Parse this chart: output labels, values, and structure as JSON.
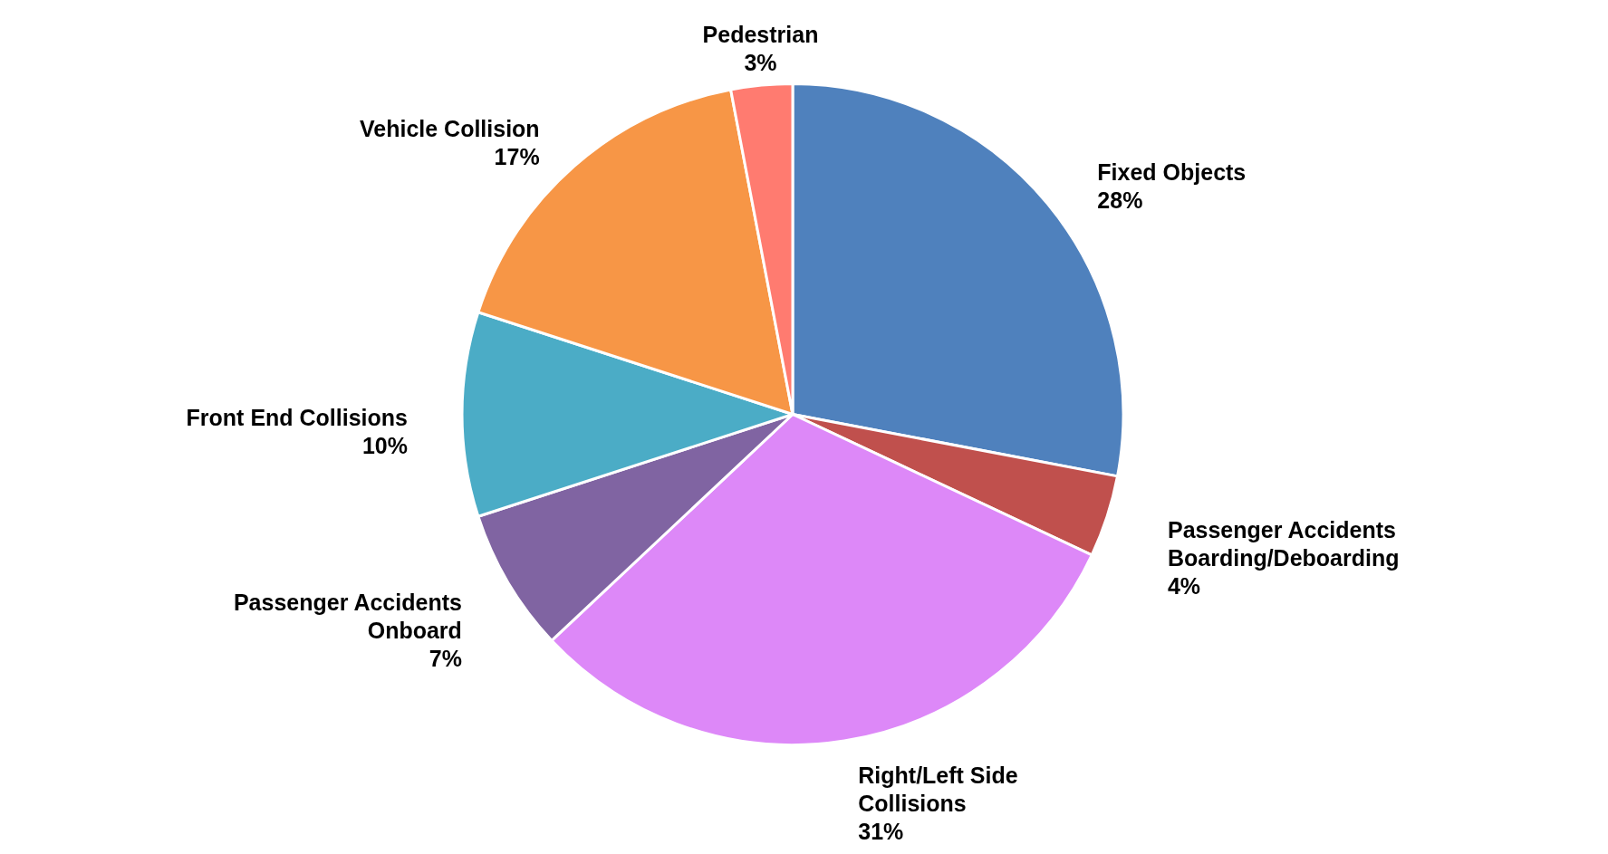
{
  "chart_data": {
    "type": "pie",
    "categories": [
      "Fixed Objects",
      "Passenger Accidents Boarding/Deboarding",
      "Right/Left Side Collisions",
      "Passenger Accidents Onboard",
      "Front End Collisions",
      "Vehicle Collision",
      "Pedestrian"
    ],
    "values": [
      28,
      4,
      31,
      7,
      10,
      17,
      3
    ],
    "value_labels": [
      "28%",
      "4%",
      "31%",
      "7%",
      "10%",
      "17%",
      "3%"
    ],
    "colors": [
      "#4f81bd",
      "#c0504d",
      "#dd88f8",
      "#8064a2",
      "#4bacc6",
      "#f79646",
      "#ff7b70"
    ],
    "legend": false
  }
}
